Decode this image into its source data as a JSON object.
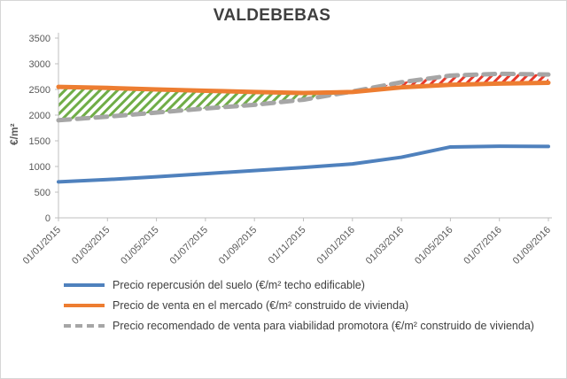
{
  "chart_data": {
    "type": "line",
    "title": "VALDEBEBAS",
    "ylabel": "€/m²",
    "ylim": [
      0,
      3500
    ],
    "ytick_step": 500,
    "gridlines": false,
    "legend_position": "bottom-left",
    "x": [
      "01/01/2015",
      "01/03/2015",
      "01/05/2015",
      "01/07/2015",
      "01/09/2015",
      "01/11/2015",
      "01/01/2016",
      "01/03/2016",
      "01/05/2016",
      "01/07/2016",
      "01/09/2016"
    ],
    "series": [
      {
        "name": "Precio repercusión del suelo (€/m² techo edificable)",
        "color": "#4f81bd",
        "style": "solid",
        "values": [
          700,
          745,
          800,
          860,
          920,
          980,
          1050,
          1180,
          1380,
          1395,
          1390
        ]
      },
      {
        "name": "Precio de venta en el mercado (€/m² construido de vivienda)",
        "color": "#ed7d31",
        "style": "solid",
        "values": [
          2550,
          2530,
          2500,
          2475,
          2450,
          2430,
          2450,
          2540,
          2590,
          2615,
          2630
        ]
      },
      {
        "name": "Precio recomendado de venta para viabilidad promotora (€/m² construido de vivienda)",
        "color": "#a6a6a6",
        "style": "dashed",
        "values": [
          1900,
          1970,
          2050,
          2130,
          2200,
          2300,
          2460,
          2640,
          2770,
          2805,
          2790
        ]
      }
    ],
    "shaded_gap": {
      "between_series": [
        1,
        2
      ],
      "hatch_color_when_market_above": "#70ad47",
      "hatch_color_when_recommended_above": "#e8392b"
    }
  }
}
